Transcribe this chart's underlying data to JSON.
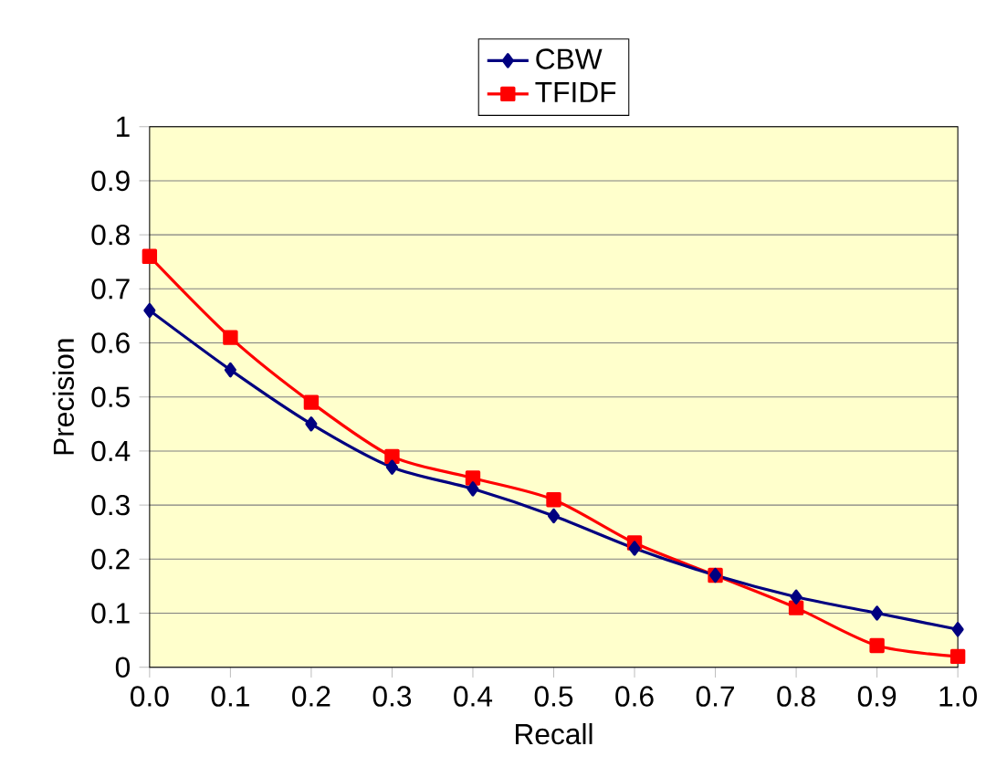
{
  "chart_data": {
    "type": "line",
    "xlabel": "Recall",
    "ylabel": "Precision",
    "x": [
      0,
      0.1,
      0.2,
      0.3,
      0.4,
      0.5,
      0.6,
      0.7,
      0.8,
      0.9,
      1.0
    ],
    "series": [
      {
        "name": "CBW",
        "color": "#000080",
        "marker": "diamond",
        "values": [
          0.66,
          0.55,
          0.45,
          0.37,
          0.33,
          0.28,
          0.22,
          0.17,
          0.13,
          0.1,
          0.07
        ]
      },
      {
        "name": "TFIDF",
        "color": "#ff0000",
        "marker": "square",
        "values": [
          0.76,
          0.61,
          0.49,
          0.39,
          0.35,
          0.31,
          0.23,
          0.17,
          0.11,
          0.04,
          0.02
        ]
      }
    ],
    "xlim": [
      0,
      1
    ],
    "ylim": [
      0,
      1
    ],
    "xticks": [
      {
        "value": 0,
        "label": "0.0"
      },
      {
        "value": 0.1,
        "label": "0.1"
      },
      {
        "value": 0.2,
        "label": "0.2"
      },
      {
        "value": 0.3,
        "label": "0.3"
      },
      {
        "value": 0.4,
        "label": "0.4"
      },
      {
        "value": 0.5,
        "label": "0.5"
      },
      {
        "value": 0.6,
        "label": "0.6"
      },
      {
        "value": 0.7,
        "label": "0.7"
      },
      {
        "value": 0.8,
        "label": "0.8"
      },
      {
        "value": 0.9,
        "label": "0.9"
      },
      {
        "value": 1,
        "label": "1.0"
      }
    ],
    "yticks": [
      0,
      0.1,
      0.2,
      0.3,
      0.4,
      0.5,
      0.6,
      0.7,
      0.8,
      0.9,
      1
    ],
    "grid": "y",
    "legend": "top",
    "line_style": "solid"
  }
}
